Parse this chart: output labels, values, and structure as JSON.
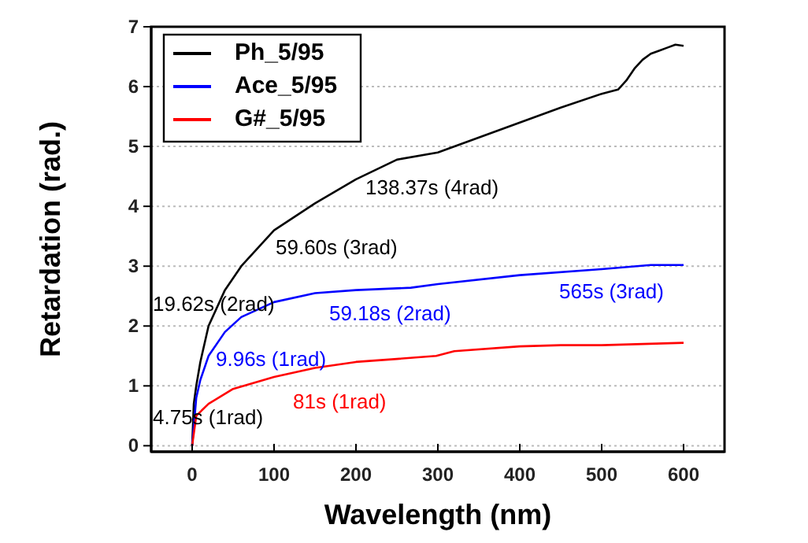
{
  "chart_data": {
    "type": "line",
    "xlabel": "Wavelength (nm)",
    "ylabel": "Retardation (rad.)",
    "xlim": [
      -50,
      650
    ],
    "ylim": [
      -0.1,
      7
    ],
    "xticks": [
      0,
      100,
      200,
      300,
      400,
      500,
      600
    ],
    "yticks": [
      0,
      1,
      2,
      3,
      4,
      5,
      6,
      7
    ],
    "grid": "y",
    "legend": "top left",
    "line_style": "solid",
    "marker": "none",
    "series": [
      {
        "name": "Ph_5/95",
        "color": "#000000",
        "x": [
          0,
          2,
          5,
          10,
          20,
          40,
          60,
          100,
          150,
          200,
          250,
          300,
          350,
          400,
          450,
          500,
          520,
          530,
          540,
          550,
          560,
          570,
          580,
          590,
          600
        ],
        "values": [
          0,
          0.7,
          1.0,
          1.4,
          2.0,
          2.6,
          3.0,
          3.6,
          4.05,
          4.45,
          4.78,
          4.9,
          5.15,
          5.4,
          5.65,
          5.88,
          5.95,
          6.1,
          6.3,
          6.45,
          6.55,
          6.6,
          6.65,
          6.7,
          6.68
        ]
      },
      {
        "name": "Ace_5/95",
        "color": "#0000ff",
        "x": [
          0,
          5,
          10,
          20,
          40,
          60,
          100,
          150,
          200,
          267,
          300,
          400,
          500,
          560,
          600
        ],
        "values": [
          0,
          0.8,
          1.1,
          1.5,
          1.9,
          2.15,
          2.4,
          2.55,
          2.6,
          2.64,
          2.7,
          2.85,
          2.95,
          3.02,
          3.02
        ]
      },
      {
        "name": "G#_5/95",
        "color": "#ff0000",
        "x": [
          0,
          5,
          20,
          50,
          100,
          150,
          200,
          250,
          298,
          320,
          400,
          450,
          500,
          600
        ],
        "values": [
          0,
          0.5,
          0.7,
          0.95,
          1.15,
          1.3,
          1.4,
          1.45,
          1.5,
          1.58,
          1.66,
          1.68,
          1.68,
          1.72
        ]
      }
    ],
    "annotations": [
      "138.37s (4rad)",
      "59.60s (3rad)",
      "19.62s (2rad)",
      "59.18s (2rad)",
      "565s (3rad)",
      "9.96s (1rad)",
      "4.75s (1rad)",
      "81s (1rad)"
    ]
  }
}
